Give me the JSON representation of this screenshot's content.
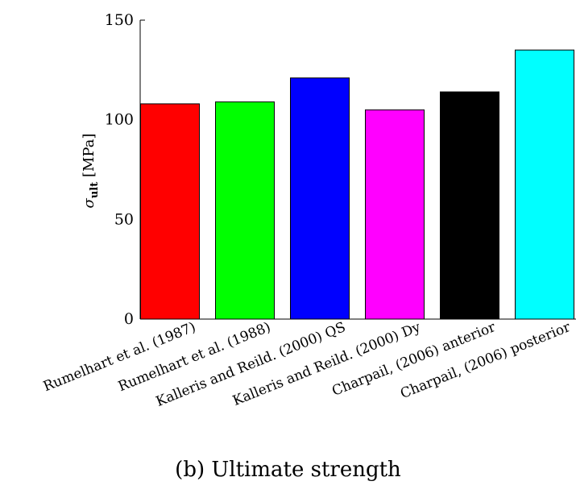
{
  "chart_data": {
    "type": "bar",
    "categories": [
      "Rumelhart et al. (1987)",
      "Rumelhart et al. (1988)",
      "Kalleris and Reild. (2000) QS",
      "Kalleris and Reild. (2000) Dy",
      "Charpail, (2006) anterior",
      "Charpail, (2006) posterior"
    ],
    "values": [
      108,
      109,
      121,
      105,
      114,
      135
    ],
    "colors": [
      "#ff0000",
      "#00ff00",
      "#0000ff",
      "#ff00ff",
      "#000000",
      "#00ffff"
    ],
    "ylabel_symbol": "σ",
    "ylabel_subscript": "ult",
    "ylabel_unit": "[MPa]",
    "ylim": [
      0,
      150
    ],
    "yticks": [
      0,
      50,
      100,
      150
    ],
    "grid": false
  },
  "caption": "(b) Ultimate strength"
}
